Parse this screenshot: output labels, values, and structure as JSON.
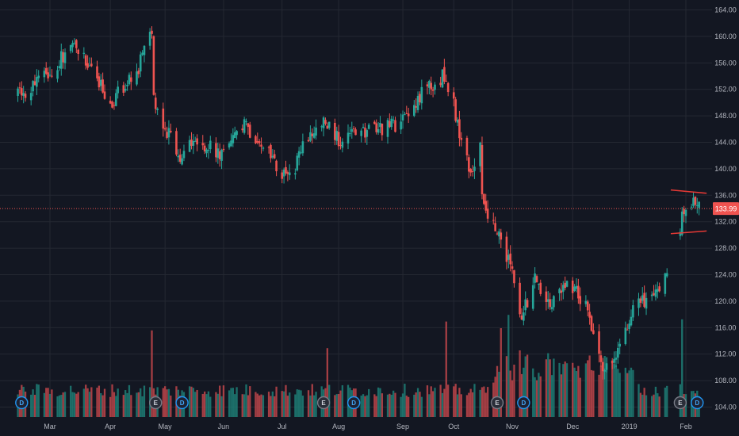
{
  "chart_data": {
    "type": "candlestick",
    "title": "",
    "xlabel": "",
    "ylabel": "",
    "ylim": [
      102.5,
      165.5
    ],
    "grid": true,
    "colors": {
      "background": "#131722",
      "grid": "#242832",
      "up": "#26a69a",
      "down": "#ef5350",
      "axis_text": "#b2b5be",
      "price_line": "#ef5350",
      "volume_up": "#1f7f77",
      "volume_down": "#c0454a"
    },
    "y_ticks": [
      "104.00",
      "108.00",
      "112.00",
      "116.00",
      "120.00",
      "124.00",
      "128.00",
      "132.00",
      "136.00",
      "140.00",
      "144.00",
      "148.00",
      "152.00",
      "156.00",
      "160.00",
      "164.00"
    ],
    "x_ticks": [
      {
        "label": "Mar",
        "date": "2018-03-01"
      },
      {
        "label": "Apr",
        "date": "2018-04-02"
      },
      {
        "label": "May",
        "date": "2018-05-01"
      },
      {
        "label": "Jun",
        "date": "2018-06-01"
      },
      {
        "label": "Jul",
        "date": "2018-07-02"
      },
      {
        "label": "Aug",
        "date": "2018-08-01"
      },
      {
        "label": "Sep",
        "date": "2018-09-04"
      },
      {
        "label": "Oct",
        "date": "2018-10-01"
      },
      {
        "label": "Nov",
        "date": "2018-11-01"
      },
      {
        "label": "Dec",
        "date": "2018-12-03"
      },
      {
        "label": "2019",
        "date": "2019-01-02"
      },
      {
        "label": "Feb",
        "date": "2019-02-01"
      }
    ],
    "last_price": {
      "value": 133.99,
      "label": "133.99"
    },
    "series": [
      {
        "kind": "candles",
        "date_range": [
          "2018-02-12",
          "2019-02-08"
        ],
        "close_path": [
          [
            "2018-02-12",
            151.0
          ],
          [
            "2018-02-22",
            153.0
          ],
          [
            "2018-03-05",
            156.0
          ],
          [
            "2018-03-14",
            159.0
          ],
          [
            "2018-03-23",
            155.5
          ],
          [
            "2018-04-02",
            150.0
          ],
          [
            "2018-04-09",
            152.5
          ],
          [
            "2018-04-16",
            154.0
          ],
          [
            "2018-04-20",
            159.5
          ],
          [
            "2018-04-24",
            161.5
          ],
          [
            "2018-04-25",
            150.5
          ],
          [
            "2018-05-01",
            146.0
          ],
          [
            "2018-05-09",
            142.0
          ],
          [
            "2018-05-18",
            144.5
          ],
          [
            "2018-06-01",
            142.0
          ],
          [
            "2018-06-12",
            146.5
          ],
          [
            "2018-06-20",
            144.5
          ],
          [
            "2018-06-29",
            140.0
          ],
          [
            "2018-07-06",
            138.5
          ],
          [
            "2018-07-16",
            145.0
          ],
          [
            "2018-07-24",
            147.0
          ],
          [
            "2018-08-01",
            144.5
          ],
          [
            "2018-08-13",
            145.5
          ],
          [
            "2018-08-23",
            146.0
          ],
          [
            "2018-09-04",
            147.0
          ],
          [
            "2018-09-14",
            151.5
          ],
          [
            "2018-09-25",
            154.0
          ],
          [
            "2018-10-01",
            149.5
          ],
          [
            "2018-10-05",
            144.0
          ],
          [
            "2018-10-10",
            139.5
          ],
          [
            "2018-10-15",
            143.5
          ],
          [
            "2018-10-16",
            135.0
          ],
          [
            "2018-10-23",
            131.5
          ],
          [
            "2018-10-31",
            125.5
          ],
          [
            "2018-11-06",
            117.5
          ],
          [
            "2018-11-13",
            123.0
          ],
          [
            "2018-11-21",
            119.5
          ],
          [
            "2018-11-30",
            123.5
          ],
          [
            "2018-12-10",
            119.5
          ],
          [
            "2018-12-20",
            109.5
          ],
          [
            "2018-12-26",
            112.0
          ],
          [
            "2019-01-04",
            118.5
          ],
          [
            "2019-01-14",
            121.0
          ],
          [
            "2019-01-22",
            123.5
          ]
        ],
        "gap_segment": [
          [
            "2019-01-29",
            131.5
          ],
          [
            "2019-02-01",
            134.5
          ],
          [
            "2019-02-05",
            135.5
          ],
          [
            "2019-02-08",
            133.99
          ]
        ]
      },
      {
        "kind": "volume",
        "spikes": [
          {
            "date": "2018-04-24",
            "level": 0.78
          },
          {
            "date": "2018-07-26",
            "level": 0.62
          },
          {
            "date": "2018-09-27",
            "level": 0.86
          },
          {
            "date": "2018-10-26",
            "level": 0.8
          },
          {
            "date": "2018-10-30",
            "level": 0.92
          },
          {
            "date": "2018-11-05",
            "level": 0.6
          },
          {
            "date": "2018-12-20",
            "level": 0.55
          },
          {
            "date": "2019-01-30",
            "level": 0.88
          }
        ]
      }
    ],
    "annotations": [
      {
        "type": "trendline",
        "from": [
          "2019-01-24",
          136.8
        ],
        "to": [
          "2019-02-12",
          136.3
        ]
      },
      {
        "type": "trendline",
        "from": [
          "2019-01-24",
          130.2
        ],
        "to": [
          "2019-02-12",
          130.6
        ]
      }
    ],
    "event_markers": [
      {
        "date": "2018-02-14",
        "kind": "D",
        "label": "D"
      },
      {
        "date": "2018-04-26",
        "kind": "E",
        "label": "E"
      },
      {
        "date": "2018-05-10",
        "kind": "D",
        "label": "D"
      },
      {
        "date": "2018-07-24",
        "kind": "E",
        "label": "E"
      },
      {
        "date": "2018-08-09",
        "kind": "D",
        "label": "D"
      },
      {
        "date": "2018-10-24",
        "kind": "E",
        "label": "E"
      },
      {
        "date": "2018-11-07",
        "kind": "D",
        "label": "D"
      },
      {
        "date": "2019-01-29",
        "kind": "E",
        "label": "E"
      },
      {
        "date": "2019-02-07",
        "kind": "D",
        "label": "D"
      }
    ]
  }
}
